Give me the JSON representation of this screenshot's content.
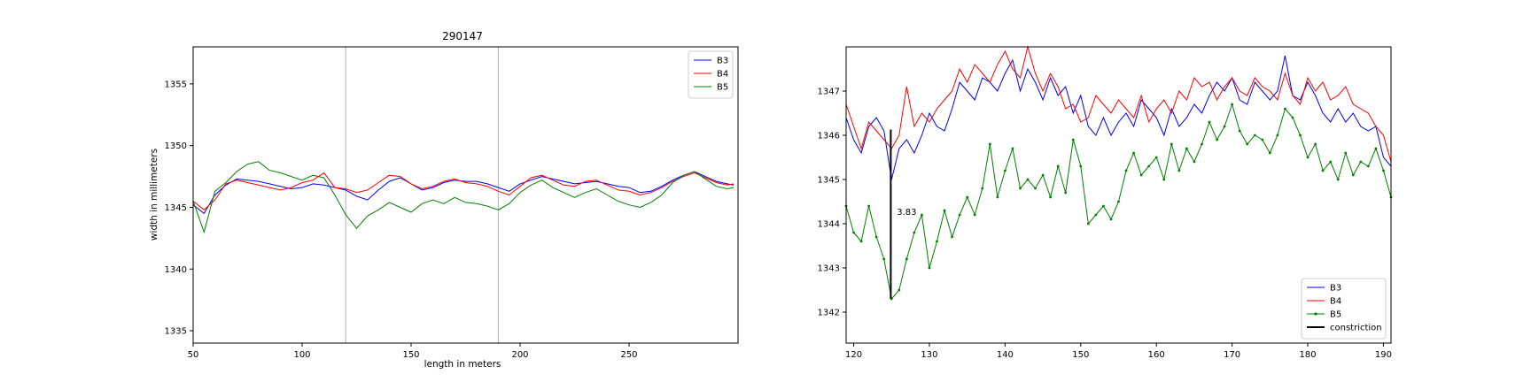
{
  "chart_data": [
    {
      "type": "line",
      "title": "290147",
      "xlabel": "length in meters",
      "ylabel": "width in millimeters",
      "xlim": [
        50,
        300
      ],
      "ylim": [
        1334,
        1358
      ],
      "xticks": [
        50,
        100,
        150,
        200,
        250
      ],
      "yticks": [
        1335,
        1340,
        1345,
        1350,
        1355
      ],
      "grid": false,
      "vertical_lines": [
        120,
        190
      ],
      "legend": "top-right",
      "series": [
        {
          "name": "B3",
          "color": "#0000ff",
          "x": [
            50,
            55,
            60,
            65,
            70,
            75,
            80,
            85,
            90,
            95,
            100,
            105,
            110,
            115,
            120,
            125,
            130,
            135,
            140,
            145,
            150,
            155,
            160,
            165,
            170,
            175,
            180,
            185,
            190,
            195,
            200,
            205,
            210,
            215,
            220,
            225,
            230,
            235,
            240,
            245,
            250,
            255,
            260,
            265,
            270,
            275,
            280,
            285,
            290,
            295,
            298
          ],
          "y": [
            1345.2,
            1344.5,
            1346.0,
            1346.8,
            1347.3,
            1347.2,
            1347.1,
            1346.9,
            1346.7,
            1346.5,
            1346.6,
            1346.9,
            1346.8,
            1346.6,
            1346.4,
            1345.9,
            1345.6,
            1346.4,
            1347.1,
            1347.4,
            1346.9,
            1346.4,
            1346.6,
            1347.0,
            1347.2,
            1347.1,
            1347.1,
            1346.9,
            1346.6,
            1346.3,
            1346.9,
            1347.2,
            1347.5,
            1347.3,
            1347.1,
            1346.9,
            1347.0,
            1347.1,
            1346.9,
            1346.7,
            1346.6,
            1346.2,
            1346.3,
            1346.7,
            1347.2,
            1347.6,
            1347.9,
            1347.5,
            1347.1,
            1346.9,
            1346.8
          ]
        },
        {
          "name": "B4",
          "color": "#ff0000",
          "x": [
            50,
            55,
            60,
            65,
            70,
            75,
            80,
            85,
            90,
            95,
            100,
            105,
            110,
            115,
            120,
            125,
            130,
            135,
            140,
            145,
            150,
            155,
            160,
            165,
            170,
            175,
            180,
            185,
            190,
            195,
            200,
            205,
            210,
            215,
            220,
            225,
            230,
            235,
            240,
            245,
            250,
            255,
            260,
            265,
            270,
            275,
            280,
            285,
            290,
            295,
            298
          ],
          "y": [
            1345.5,
            1344.8,
            1345.6,
            1346.9,
            1347.2,
            1347.0,
            1346.8,
            1346.6,
            1346.4,
            1346.6,
            1347.0,
            1347.2,
            1347.8,
            1346.6,
            1346.5,
            1346.2,
            1346.4,
            1347.0,
            1347.6,
            1347.5,
            1346.9,
            1346.5,
            1346.7,
            1347.1,
            1347.3,
            1347.0,
            1346.9,
            1346.7,
            1346.3,
            1346.0,
            1346.7,
            1347.4,
            1347.6,
            1347.2,
            1346.8,
            1346.7,
            1347.1,
            1347.2,
            1346.8,
            1346.4,
            1346.3,
            1346.0,
            1346.2,
            1346.6,
            1347.1,
            1347.5,
            1347.8,
            1347.4,
            1347.0,
            1346.8,
            1346.9
          ]
        },
        {
          "name": "B5",
          "color": "#008000",
          "x": [
            50,
            55,
            60,
            65,
            70,
            75,
            80,
            85,
            90,
            95,
            100,
            105,
            110,
            115,
            120,
            125,
            130,
            135,
            140,
            145,
            150,
            155,
            160,
            165,
            170,
            175,
            180,
            185,
            190,
            195,
            200,
            205,
            210,
            215,
            220,
            225,
            230,
            235,
            240,
            245,
            250,
            255,
            260,
            265,
            270,
            275,
            280,
            285,
            290,
            295,
            298
          ],
          "y": [
            1345.5,
            1343.0,
            1346.3,
            1347.0,
            1347.9,
            1348.5,
            1348.7,
            1348.0,
            1347.8,
            1347.5,
            1347.2,
            1347.6,
            1347.4,
            1346.0,
            1344.4,
            1343.3,
            1344.3,
            1344.8,
            1345.4,
            1345.0,
            1344.6,
            1345.3,
            1345.6,
            1345.3,
            1345.8,
            1345.4,
            1345.3,
            1345.1,
            1344.8,
            1345.3,
            1346.2,
            1346.8,
            1347.2,
            1346.6,
            1346.2,
            1345.8,
            1346.2,
            1346.5,
            1346.0,
            1345.5,
            1345.2,
            1345.0,
            1345.4,
            1346.0,
            1347.0,
            1347.6,
            1347.9,
            1347.3,
            1346.7,
            1346.5,
            1346.6
          ]
        }
      ]
    },
    {
      "type": "line",
      "title": "",
      "xlabel": "",
      "ylabel": "",
      "xlim": [
        119,
        191
      ],
      "ylim": [
        1341.3,
        1348.0
      ],
      "xticks": [
        120,
        130,
        140,
        150,
        160,
        170,
        180,
        190
      ],
      "yticks": [
        1342,
        1343,
        1344,
        1345,
        1346,
        1347
      ],
      "grid": false,
      "legend": "bottom-right",
      "annotation": {
        "text": "3.83",
        "x": 125.7,
        "y": 1344.2
      },
      "constriction": {
        "x": 124.9,
        "y_top": 1346.13,
        "y_bottom": 1342.3
      },
      "series": [
        {
          "name": "B3",
          "color": "#0000ff",
          "x": [
            119,
            120,
            121,
            122,
            123,
            124,
            125,
            126,
            127,
            128,
            129,
            130,
            131,
            132,
            133,
            134,
            135,
            136,
            137,
            138,
            139,
            140,
            141,
            142,
            143,
            144,
            145,
            146,
            147,
            148,
            149,
            150,
            151,
            152,
            153,
            154,
            155,
            156,
            157,
            158,
            159,
            160,
            161,
            162,
            163,
            164,
            165,
            166,
            167,
            168,
            169,
            170,
            171,
            172,
            173,
            174,
            175,
            176,
            177,
            178,
            179,
            180,
            181,
            182,
            183,
            184,
            185,
            186,
            187,
            188,
            189,
            190,
            191
          ],
          "y": [
            1346.4,
            1345.9,
            1345.6,
            1346.2,
            1346.4,
            1346.1,
            1345.0,
            1345.7,
            1345.9,
            1345.6,
            1346.0,
            1346.5,
            1346.2,
            1346.1,
            1346.6,
            1347.2,
            1347.0,
            1346.8,
            1347.3,
            1347.2,
            1347.0,
            1347.4,
            1347.7,
            1347.0,
            1347.5,
            1347.2,
            1346.8,
            1347.3,
            1346.9,
            1347.1,
            1346.5,
            1346.9,
            1346.2,
            1346.0,
            1346.4,
            1346.0,
            1346.3,
            1346.5,
            1346.2,
            1346.8,
            1346.6,
            1346.4,
            1346.0,
            1346.6,
            1346.2,
            1346.4,
            1346.7,
            1346.5,
            1346.9,
            1347.2,
            1347.0,
            1347.3,
            1346.8,
            1346.7,
            1347.2,
            1347.0,
            1346.8,
            1347.0,
            1347.8,
            1346.9,
            1346.8,
            1347.2,
            1346.9,
            1346.5,
            1346.3,
            1346.6,
            1346.3,
            1346.5,
            1346.2,
            1346.1,
            1346.2,
            1345.5,
            1345.3
          ]
        },
        {
          "name": "B4",
          "color": "#ff0000",
          "x": [
            119,
            120,
            121,
            122,
            123,
            124,
            125,
            126,
            127,
            128,
            129,
            130,
            131,
            132,
            133,
            134,
            135,
            136,
            137,
            138,
            139,
            140,
            141,
            142,
            143,
            144,
            145,
            146,
            147,
            148,
            149,
            150,
            151,
            152,
            153,
            154,
            155,
            156,
            157,
            158,
            159,
            160,
            161,
            162,
            163,
            164,
            165,
            166,
            167,
            168,
            169,
            170,
            171,
            172,
            173,
            174,
            175,
            176,
            177,
            178,
            179,
            180,
            181,
            182,
            183,
            184,
            185,
            186,
            187,
            188,
            189,
            190,
            191
          ],
          "y": [
            1346.7,
            1346.2,
            1345.7,
            1346.3,
            1346.1,
            1345.9,
            1345.7,
            1346.0,
            1347.1,
            1346.2,
            1346.5,
            1346.3,
            1346.6,
            1346.8,
            1347.0,
            1347.5,
            1347.2,
            1347.6,
            1347.4,
            1347.2,
            1347.6,
            1347.9,
            1347.5,
            1347.3,
            1348.2,
            1347.4,
            1347.0,
            1347.4,
            1347.1,
            1346.6,
            1346.7,
            1346.3,
            1346.4,
            1346.9,
            1346.7,
            1346.5,
            1346.8,
            1346.6,
            1346.4,
            1346.9,
            1346.3,
            1346.6,
            1346.8,
            1346.5,
            1347.0,
            1346.8,
            1347.3,
            1347.1,
            1347.2,
            1346.8,
            1347.1,
            1347.3,
            1347.0,
            1346.9,
            1347.3,
            1347.1,
            1347.0,
            1346.8,
            1347.4,
            1346.9,
            1346.7,
            1347.3,
            1347.0,
            1347.2,
            1346.8,
            1346.9,
            1347.1,
            1346.7,
            1346.6,
            1346.5,
            1346.2,
            1346.0,
            1345.4
          ]
        },
        {
          "name": "B5",
          "color": "#008000",
          "x": [
            119,
            120,
            121,
            122,
            123,
            124,
            125,
            126,
            127,
            128,
            129,
            130,
            131,
            132,
            133,
            134,
            135,
            136,
            137,
            138,
            139,
            140,
            141,
            142,
            143,
            144,
            145,
            146,
            147,
            148,
            149,
            150,
            151,
            152,
            153,
            154,
            155,
            156,
            157,
            158,
            159,
            160,
            161,
            162,
            163,
            164,
            165,
            166,
            167,
            168,
            169,
            170,
            171,
            172,
            173,
            174,
            175,
            176,
            177,
            178,
            179,
            180,
            181,
            182,
            183,
            184,
            185,
            186,
            187,
            188,
            189,
            190,
            191
          ],
          "y": [
            1344.4,
            1343.8,
            1343.6,
            1344.4,
            1343.7,
            1343.2,
            1342.3,
            1342.5,
            1343.2,
            1343.8,
            1344.2,
            1343.0,
            1343.6,
            1344.3,
            1343.7,
            1344.2,
            1344.6,
            1344.2,
            1344.8,
            1345.8,
            1344.6,
            1345.2,
            1345.7,
            1344.8,
            1345.0,
            1344.8,
            1345.1,
            1344.6,
            1345.3,
            1344.7,
            1345.9,
            1345.3,
            1344.0,
            1344.2,
            1344.4,
            1344.1,
            1344.5,
            1345.2,
            1345.6,
            1345.1,
            1345.3,
            1345.5,
            1345.0,
            1345.8,
            1345.2,
            1345.7,
            1345.4,
            1345.8,
            1346.3,
            1345.9,
            1346.2,
            1346.7,
            1346.1,
            1345.8,
            1346.0,
            1345.9,
            1345.6,
            1346.0,
            1346.6,
            1346.4,
            1346.0,
            1345.5,
            1345.8,
            1345.2,
            1345.4,
            1345.0,
            1345.6,
            1345.1,
            1345.4,
            1345.3,
            1345.7,
            1345.2,
            1344.6
          ]
        },
        {
          "name": "constriction",
          "color": "#000000",
          "x": [],
          "y": []
        }
      ]
    }
  ]
}
